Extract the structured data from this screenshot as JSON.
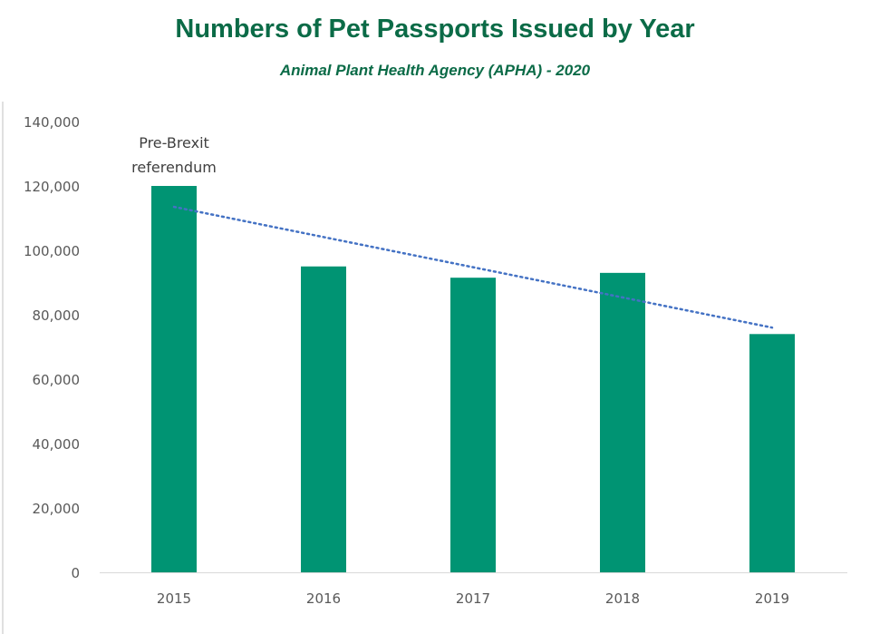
{
  "chart_data": {
    "type": "bar",
    "title": "Numbers of Pet Passports Issued by Year",
    "subtitle": "Animal Plant Health Agency (APHA) - 2020",
    "categories": [
      "2015",
      "2016",
      "2017",
      "2018",
      "2019"
    ],
    "values": [
      120000,
      95000,
      91500,
      93000,
      74000
    ],
    "ylim": [
      0,
      140000
    ],
    "yticks": [
      "0",
      "20,000",
      "40,000",
      "60,000",
      "80,000",
      "100,000",
      "120,000",
      "140,000"
    ],
    "grid": false,
    "bar_color": "#009473",
    "trendline": {
      "style": "dotted",
      "color": "#4472c4",
      "start": 113500,
      "end": 76000
    },
    "annotation": {
      "category": "2015",
      "lines": [
        "Pre-Brexit",
        "referendum"
      ]
    }
  }
}
